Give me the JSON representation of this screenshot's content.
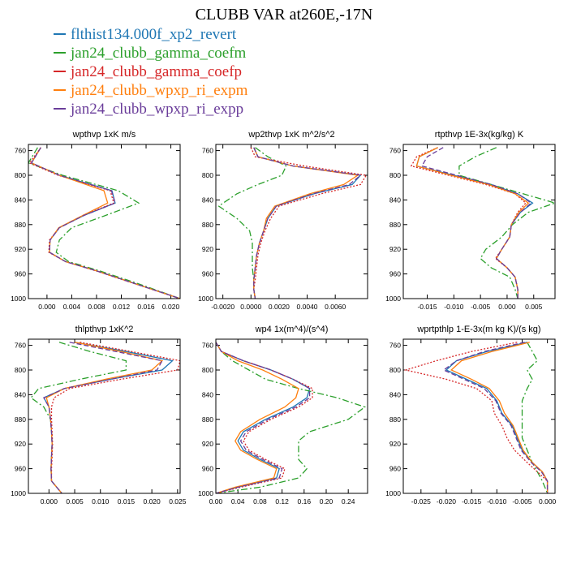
{
  "title": "CLUBB VAR at260E,-17N",
  "legend": [
    {
      "label": "flthist134.000f_xp2_revert",
      "color": "#1f77b4"
    },
    {
      "label": "jan24_clubb_gamma_coefm",
      "color": "#2ca02c"
    },
    {
      "label": "jan24_clubb_gamma_coefp",
      "color": "#d62728"
    },
    {
      "label": "jan24_clubb_wpxp_ri_expm",
      "color": "#ff7f0e"
    },
    {
      "label": "jan24_clubb_wpxp_ri_expp",
      "color": "#6a3d9a"
    }
  ],
  "chart_data": [
    {
      "type": "line",
      "title": "wpthvp   1xK m/s",
      "xlim": [
        -0.003,
        0.0215
      ],
      "xticks": [
        0.0,
        0.004,
        0.008,
        0.012,
        0.016,
        0.02
      ],
      "xtick_labels": [
        "0.000",
        "0.004",
        "0.008",
        "0.012",
        "0.016",
        "0.020"
      ],
      "ylim": [
        1000,
        750
      ],
      "yticks": [
        760,
        800,
        840,
        880,
        920,
        960,
        1000
      ],
      "y": [
        755,
        780,
        800,
        825,
        845,
        865,
        885,
        905,
        925,
        940,
        955,
        975,
        1000
      ],
      "series": [
        {
          "color": "#1f77b4",
          "style": "solid",
          "values": [
            -0.001,
            -0.0025,
            0.002,
            0.0105,
            0.011,
            0.006,
            0.002,
            0.0005,
            0.0004,
            0.003,
            0.008,
            0.014,
            0.0215
          ]
        },
        {
          "color": "#2ca02c",
          "style": "dashdot",
          "values": [
            -0.0015,
            -0.003,
            0.0025,
            0.0115,
            0.0148,
            0.0095,
            0.004,
            0.002,
            0.0015,
            0.0035,
            0.0085,
            0.0145,
            0.0215
          ]
        },
        {
          "color": "#d62728",
          "style": "dotted",
          "values": [
            -0.001,
            -0.0028,
            0.0018,
            0.0102,
            0.0108,
            0.0058,
            0.002,
            0.0004,
            0.0003,
            0.003,
            0.0079,
            0.0139,
            0.0215
          ]
        },
        {
          "color": "#ff7f0e",
          "style": "solid",
          "values": [
            -0.001,
            -0.0025,
            0.002,
            0.0092,
            0.0098,
            0.0058,
            0.0019,
            0.0005,
            0.0004,
            0.003,
            0.008,
            0.014,
            0.0215
          ]
        },
        {
          "color": "#6a3d9a",
          "style": "dashed",
          "values": [
            -0.001,
            -0.0025,
            0.002,
            0.0104,
            0.011,
            0.006,
            0.002,
            0.0005,
            0.0004,
            0.003,
            0.008,
            0.014,
            0.0215
          ]
        }
      ]
    },
    {
      "type": "line",
      "title": "wp2thvp   1xK m^2/s^2",
      "xlim": [
        -0.0025,
        0.0083
      ],
      "xticks": [
        -0.002,
        0.0,
        0.002,
        0.004,
        0.006
      ],
      "xtick_labels": [
        "-0.0020",
        "0.0000",
        "0.0020",
        "0.0040",
        "0.0060"
      ],
      "ylim": [
        1000,
        750
      ],
      "yticks": [
        760,
        800,
        840,
        880,
        920,
        960,
        1000
      ],
      "y": [
        755,
        770,
        785,
        800,
        815,
        830,
        850,
        870,
        890,
        910,
        930,
        950,
        970,
        985,
        1000
      ],
      "series": [
        {
          "color": "#1f77b4",
          "style": "solid",
          "values": [
            0.0002,
            0.0005,
            0.003,
            0.0078,
            0.0072,
            0.0045,
            0.0018,
            0.0012,
            0.0009,
            0.0006,
            0.0004,
            0.0003,
            0.0002,
            0.0002,
            0.0003
          ]
        },
        {
          "color": "#2ca02c",
          "style": "dashdot",
          "values": [
            0.0003,
            0.0012,
            0.0025,
            0.0022,
            0.0005,
            -0.001,
            -0.0023,
            -0.001,
            -0.0001,
            0.0001,
            0.0001,
            0.0001,
            0.0002,
            0.0002,
            0.0003
          ]
        },
        {
          "color": "#d62728",
          "style": "dotted",
          "values": [
            0.0,
            0.0003,
            0.0038,
            0.0082,
            0.0078,
            0.005,
            0.002,
            0.0014,
            0.001,
            0.0007,
            0.0005,
            0.0004,
            0.0003,
            0.0002,
            0.0003
          ]
        },
        {
          "color": "#ff7f0e",
          "style": "solid",
          "values": [
            0.0002,
            0.0005,
            0.003,
            0.0076,
            0.0066,
            0.0042,
            0.0017,
            0.0011,
            0.0009,
            0.0006,
            0.0004,
            0.0003,
            0.0002,
            0.0002,
            0.0003
          ]
        },
        {
          "color": "#6a3d9a",
          "style": "dashed",
          "values": [
            0.0002,
            0.0005,
            0.003,
            0.0078,
            0.007,
            0.0044,
            0.0018,
            0.0012,
            0.0009,
            0.0006,
            0.0004,
            0.0003,
            0.0002,
            0.0002,
            0.0003
          ]
        }
      ]
    },
    {
      "type": "line",
      "title": "rtpthvp   1E-3x(kg/kg) K",
      "xlim": [
        -0.0195,
        0.009
      ],
      "xticks": [
        -0.015,
        -0.01,
        -0.005,
        0.0,
        0.005
      ],
      "xtick_labels": [
        "-0.015",
        "-0.010",
        "-0.005",
        "0.000",
        "0.005"
      ],
      "ylim": [
        1000,
        750
      ],
      "yticks": [
        760,
        800,
        840,
        880,
        920,
        960,
        1000
      ],
      "y": [
        755,
        770,
        785,
        800,
        815,
        830,
        845,
        860,
        880,
        900,
        920,
        935,
        950,
        965,
        985,
        1000
      ],
      "series": [
        {
          "color": "#1f77b4",
          "style": "solid",
          "values": [
            -0.013,
            -0.0165,
            -0.017,
            -0.01,
            -0.003,
            0.002,
            0.0048,
            0.0025,
            0.0008,
            0.0005,
            -0.001,
            -0.002,
            0.0,
            0.0015,
            0.002,
            0.002
          ]
        },
        {
          "color": "#2ca02c",
          "style": "dashdot",
          "values": [
            -0.002,
            -0.006,
            -0.009,
            -0.009,
            -0.003,
            0.003,
            0.009,
            0.004,
            0.001,
            -0.001,
            -0.004,
            -0.005,
            -0.003,
            0.0005,
            0.0015,
            0.002
          ]
        },
        {
          "color": "#d62728",
          "style": "dotted",
          "values": [
            -0.013,
            -0.017,
            -0.018,
            -0.011,
            -0.004,
            0.0015,
            0.0035,
            0.002,
            0.0008,
            0.0005,
            -0.001,
            -0.0022,
            0.0,
            0.0015,
            0.002,
            0.002
          ]
        },
        {
          "color": "#ff7f0e",
          "style": "solid",
          "values": [
            -0.013,
            -0.0165,
            -0.017,
            -0.0105,
            -0.0035,
            0.0015,
            0.004,
            0.0022,
            0.0008,
            0.0005,
            -0.001,
            -0.002,
            0.0,
            0.0015,
            0.002,
            0.002
          ]
        },
        {
          "color": "#6a3d9a",
          "style": "dashed",
          "values": [
            -0.012,
            -0.015,
            -0.016,
            -0.0095,
            -0.003,
            0.002,
            0.0045,
            0.0025,
            0.0008,
            0.0005,
            -0.001,
            -0.002,
            0.0,
            0.0015,
            0.002,
            0.002
          ]
        }
      ]
    },
    {
      "type": "line",
      "title": "thlpthvp   1xK^2",
      "xlim": [
        -0.004,
        0.0255
      ],
      "xticks": [
        0.0,
        0.005,
        0.01,
        0.015,
        0.02,
        0.025
      ],
      "xtick_labels": [
        "0.000",
        "0.005",
        "0.010",
        "0.015",
        "0.020",
        "0.025"
      ],
      "ylim": [
        1000,
        750
      ],
      "yticks": [
        760,
        800,
        840,
        880,
        920,
        960,
        1000
      ],
      "y": [
        755,
        770,
        785,
        800,
        815,
        830,
        845,
        860,
        880,
        900,
        920,
        940,
        960,
        980,
        1000
      ],
      "series": [
        {
          "color": "#1f77b4",
          "style": "solid",
          "values": [
            0.005,
            0.015,
            0.024,
            0.022,
            0.012,
            0.003,
            -0.001,
            0.0,
            0.0003,
            0.0005,
            0.0006,
            0.0005,
            0.0004,
            0.0005,
            0.0025
          ]
        },
        {
          "color": "#2ca02c",
          "style": "dashdot",
          "values": [
            0.002,
            0.008,
            0.015,
            0.015,
            0.006,
            -0.002,
            -0.0035,
            -0.001,
            0.0003,
            0.0005,
            0.0006,
            0.0005,
            0.0004,
            0.0005,
            0.0025
          ]
        },
        {
          "color": "#d62728",
          "style": "dotted",
          "values": [
            0.006,
            0.016,
            0.0255,
            0.025,
            0.014,
            0.004,
            0.001,
            0.0005,
            0.0005,
            0.0006,
            0.0007,
            0.0006,
            0.0005,
            0.0005,
            0.0025
          ]
        },
        {
          "color": "#ff7f0e",
          "style": "solid",
          "values": [
            0.005,
            0.014,
            0.022,
            0.02,
            0.011,
            0.003,
            -0.0005,
            0.0,
            0.0003,
            0.0005,
            0.0006,
            0.0005,
            0.0004,
            0.0005,
            0.0025
          ]
        },
        {
          "color": "#6a3d9a",
          "style": "dashed",
          "values": [
            0.004,
            0.013,
            0.022,
            0.021,
            0.012,
            0.003,
            -0.001,
            0.0,
            0.0003,
            0.0005,
            0.0006,
            0.0005,
            0.0004,
            0.0005,
            0.0025
          ]
        }
      ]
    },
    {
      "type": "line",
      "title": "wp4   1x(m^4)/(s^4)",
      "xlim": [
        0.0,
        0.275
      ],
      "xticks": [
        0.0,
        0.04,
        0.08,
        0.12,
        0.16,
        0.2,
        0.24
      ],
      "xtick_labels": [
        "0.00",
        "0.04",
        "0.08",
        "0.12",
        "0.16",
        "0.20",
        "0.24"
      ],
      "ylim": [
        1000,
        750
      ],
      "yticks": [
        760,
        800,
        840,
        880,
        920,
        960,
        1000
      ],
      "y": [
        755,
        770,
        785,
        800,
        815,
        830,
        845,
        860,
        880,
        900,
        915,
        930,
        945,
        960,
        975,
        990,
        1000
      ],
      "series": [
        {
          "color": "#1f77b4",
          "style": "solid",
          "values": [
            0.0,
            0.01,
            0.05,
            0.1,
            0.14,
            0.17,
            0.165,
            0.14,
            0.09,
            0.05,
            0.04,
            0.05,
            0.08,
            0.115,
            0.11,
            0.04,
            0.0
          ]
        },
        {
          "color": "#2ca02c",
          "style": "dashdot",
          "values": [
            0.0,
            0.01,
            0.03,
            0.06,
            0.09,
            0.15,
            0.22,
            0.27,
            0.24,
            0.17,
            0.15,
            0.15,
            0.15,
            0.165,
            0.15,
            0.08,
            0.0
          ]
        },
        {
          "color": "#d62728",
          "style": "dotted",
          "values": [
            0.0,
            0.01,
            0.05,
            0.1,
            0.14,
            0.175,
            0.175,
            0.15,
            0.1,
            0.06,
            0.05,
            0.06,
            0.09,
            0.125,
            0.12,
            0.045,
            0.0
          ]
        },
        {
          "color": "#ff7f0e",
          "style": "solid",
          "values": [
            0.0,
            0.01,
            0.04,
            0.085,
            0.12,
            0.15,
            0.145,
            0.125,
            0.08,
            0.045,
            0.035,
            0.045,
            0.075,
            0.11,
            0.105,
            0.035,
            0.0
          ]
        },
        {
          "color": "#6a3d9a",
          "style": "dashed",
          "values": [
            0.0,
            0.01,
            0.05,
            0.1,
            0.14,
            0.17,
            0.17,
            0.145,
            0.095,
            0.055,
            0.045,
            0.055,
            0.085,
            0.12,
            0.115,
            0.04,
            0.0
          ]
        }
      ]
    },
    {
      "type": "line",
      "title": "wprtpthlp   1-E-3x(m kg K)/(s kg)",
      "xlim": [
        -0.0285,
        0.0015
      ],
      "xticks": [
        -0.025,
        -0.02,
        -0.015,
        -0.01,
        -0.005,
        0.0
      ],
      "xtick_labels": [
        "-0.025",
        "-0.020",
        "-0.015",
        "-0.010",
        "-0.005",
        "0.000"
      ],
      "ylim": [
        1000,
        750
      ],
      "yticks": [
        760,
        800,
        840,
        880,
        920,
        960,
        1000
      ],
      "y": [
        755,
        770,
        785,
        800,
        815,
        830,
        850,
        870,
        890,
        910,
        930,
        950,
        965,
        980,
        1000
      ],
      "series": [
        {
          "color": "#1f77b4",
          "style": "solid",
          "values": [
            -0.004,
            -0.012,
            -0.018,
            -0.02,
            -0.016,
            -0.012,
            -0.01,
            -0.009,
            -0.007,
            -0.006,
            -0.005,
            -0.003,
            -0.001,
            0.0,
            0.0
          ]
        },
        {
          "color": "#2ca02c",
          "style": "dashdot",
          "values": [
            -0.004,
            -0.003,
            -0.002,
            -0.004,
            -0.003,
            -0.004,
            -0.005,
            -0.005,
            -0.005,
            -0.005,
            -0.004,
            -0.003,
            -0.002,
            -0.001,
            0.0
          ]
        },
        {
          "color": "#d62728",
          "style": "dotted",
          "values": [
            -0.006,
            -0.015,
            -0.022,
            -0.028,
            -0.02,
            -0.014,
            -0.011,
            -0.0105,
            -0.009,
            -0.008,
            -0.0065,
            -0.004,
            -0.002,
            0.0,
            0.0
          ]
        },
        {
          "color": "#ff7f0e",
          "style": "solid",
          "values": [
            -0.0035,
            -0.011,
            -0.017,
            -0.019,
            -0.015,
            -0.0115,
            -0.0095,
            -0.0085,
            -0.0068,
            -0.0058,
            -0.0048,
            -0.003,
            -0.001,
            0.0,
            0.0
          ]
        },
        {
          "color": "#6a3d9a",
          "style": "dashed",
          "values": [
            -0.0045,
            -0.0125,
            -0.018,
            -0.0205,
            -0.0165,
            -0.0125,
            -0.0102,
            -0.0092,
            -0.0072,
            -0.0062,
            -0.0052,
            -0.0032,
            -0.0012,
            0.0,
            0.0
          ]
        }
      ]
    }
  ]
}
